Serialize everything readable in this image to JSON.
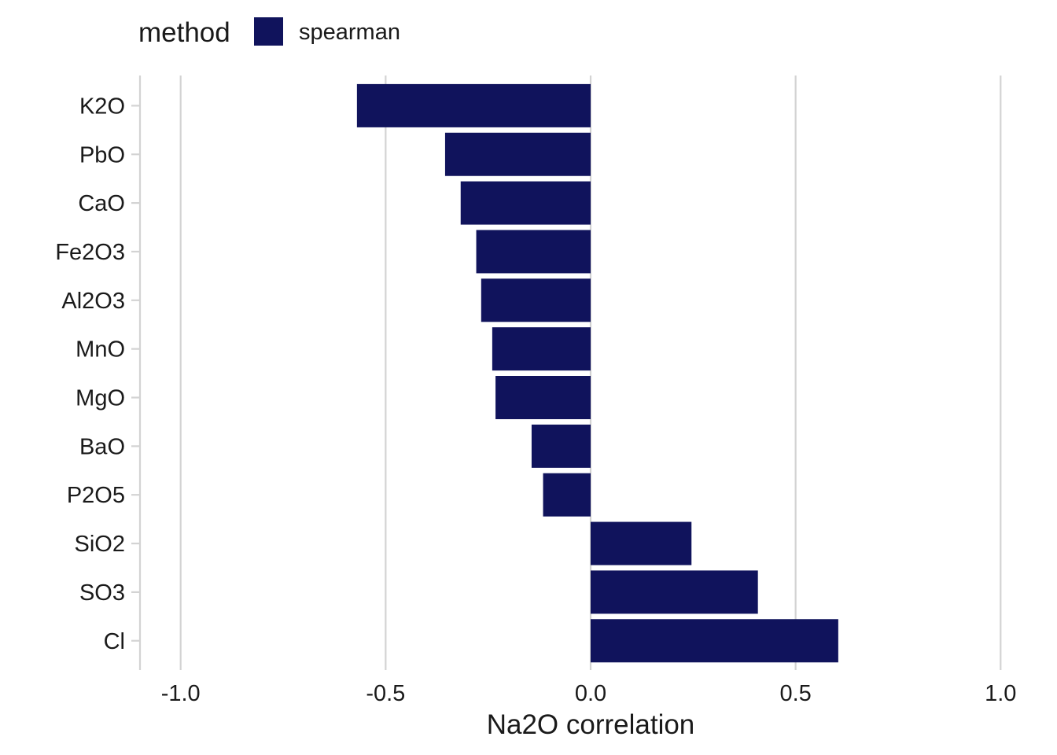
{
  "chart_data": {
    "type": "bar",
    "orientation": "horizontal",
    "categories": [
      "K2O",
      "PbO",
      "CaO",
      "Fe2O3",
      "Al2O3",
      "MnO",
      "MgO",
      "BaO",
      "P2O5",
      "SiO2",
      "SO3",
      "Cl"
    ],
    "series": [
      {
        "name": "spearman",
        "values": [
          -0.57,
          -0.355,
          -0.317,
          -0.279,
          -0.267,
          -0.24,
          -0.232,
          -0.144,
          -0.116,
          0.246,
          0.408,
          0.604
        ]
      }
    ],
    "xlabel": "Na2O correlation",
    "ylabel": "",
    "xlim": [
      -1.1,
      1.1
    ],
    "xticks": [
      -1.0,
      -0.5,
      0.0,
      0.5,
      1.0
    ],
    "xtick_labels": [
      "-1.0",
      "-0.5",
      "0.0",
      "0.5",
      "1.0"
    ],
    "grid": "vertical major",
    "legend": {
      "title": "method",
      "position": "top-left",
      "entries": [
        "spearman"
      ]
    },
    "colors": {
      "bar": "#10135c",
      "grid": "#d3d3d3",
      "axis": "#d3d3d3"
    }
  }
}
